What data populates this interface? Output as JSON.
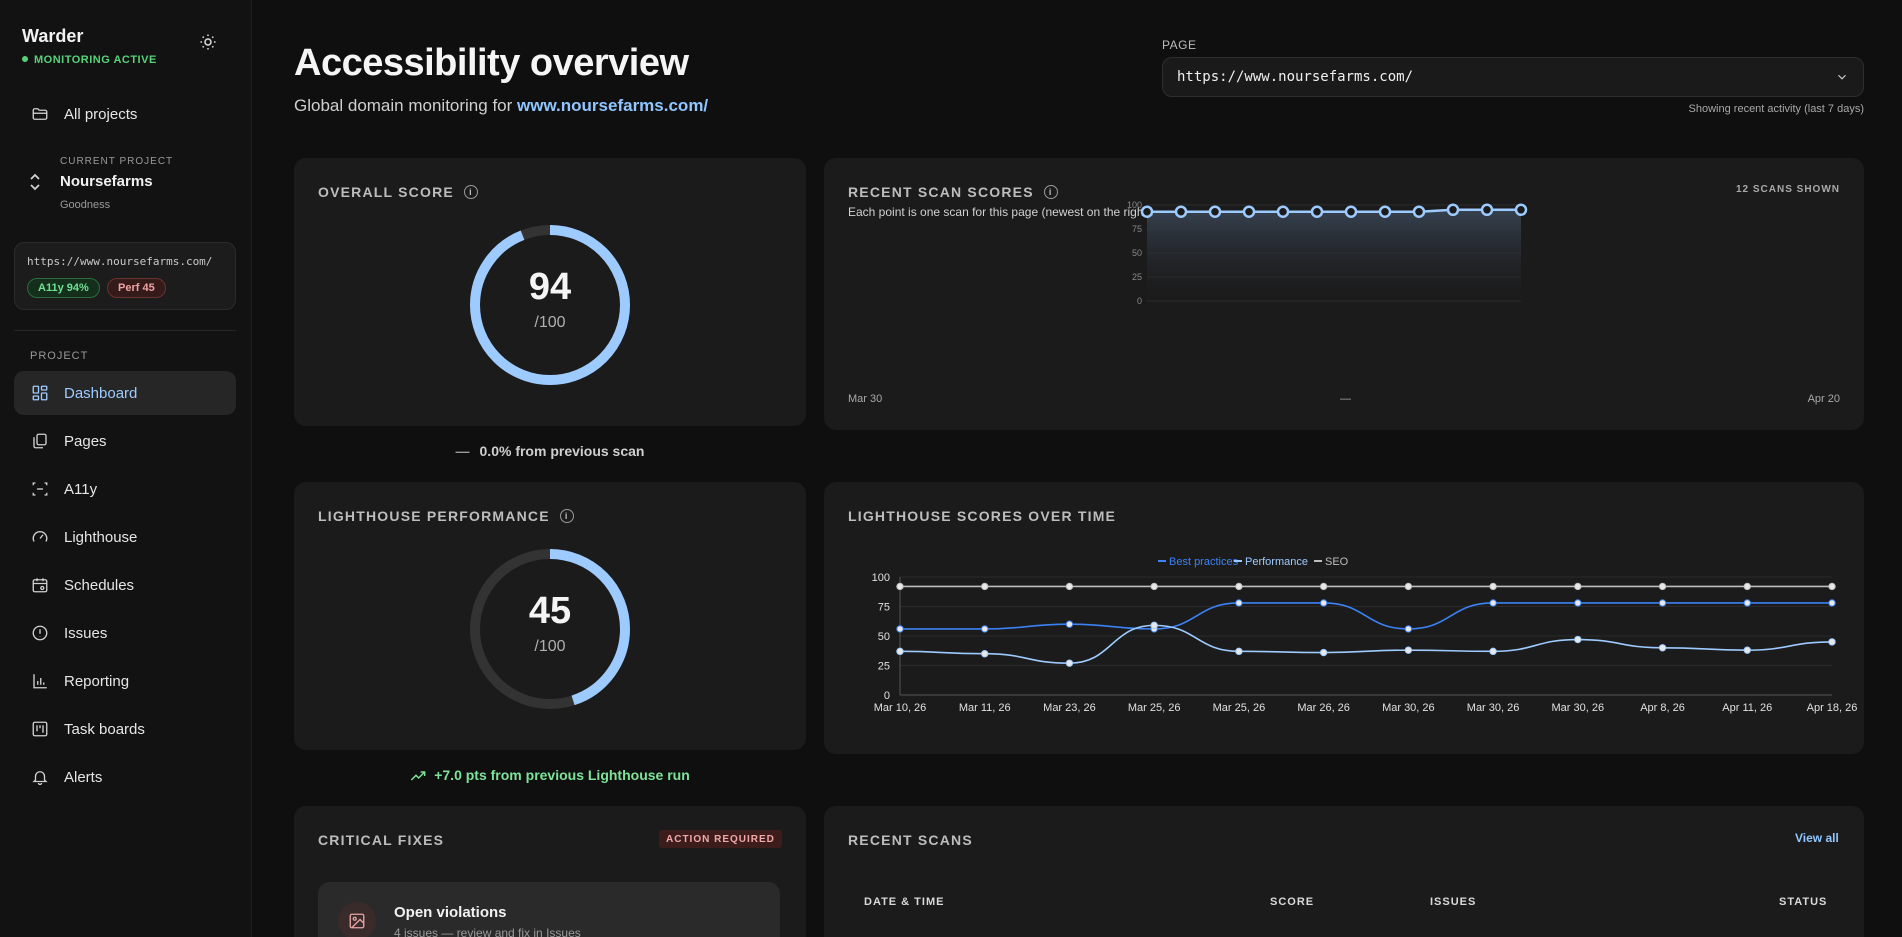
{
  "sidebar": {
    "brand": "Warder",
    "status": "MONITORING ACTIVE",
    "all_projects": "All projects",
    "current_project_label": "CURRENT PROJECT",
    "current_project_name": "Noursefarms",
    "current_project_sub": "Goodness",
    "project_card": {
      "url": "https://www.noursefarms.com/",
      "a11y_badge": "A11y 94%",
      "perf_badge": "Perf 45"
    },
    "section_label": "PROJECT",
    "items": [
      {
        "label": "Dashboard",
        "icon": "dashboard-icon",
        "active": true
      },
      {
        "label": "Pages",
        "icon": "pages-icon"
      },
      {
        "label": "A11y",
        "icon": "a11y-icon"
      },
      {
        "label": "Lighthouse",
        "icon": "gauge-icon"
      },
      {
        "label": "Schedules",
        "icon": "calendar-icon"
      },
      {
        "label": "Issues",
        "icon": "alert-circle-icon"
      },
      {
        "label": "Reporting",
        "icon": "bar-chart-icon"
      },
      {
        "label": "Task boards",
        "icon": "kanban-icon"
      },
      {
        "label": "Alerts",
        "icon": "bell-icon"
      }
    ]
  },
  "header": {
    "title": "Accessibility overview",
    "subtitle_prefix": "Global domain monitoring for ",
    "subtitle_link": "www.noursefarms.com/",
    "page_label": "PAGE",
    "page_value": "https://www.noursefarms.com/",
    "recent_note": "Showing recent activity (last 7 days)"
  },
  "overall": {
    "title": "OVERALL SCORE",
    "score": 94,
    "score_text": "94",
    "denominator": "/100",
    "delta": "0.0% from previous scan",
    "delta_icon": "—"
  },
  "lighthouse_perf": {
    "title": "LIGHTHOUSE PERFORMANCE",
    "score": 45,
    "score_text": "45",
    "denominator": "/100",
    "delta": "+7.0 pts from previous Lighthouse run"
  },
  "recent_scan_scores": {
    "title": "RECENT SCAN SCORES",
    "count_label": "12 SCANS SHOWN",
    "description": "Each point is one scan for this page (newest on the right).",
    "x_start": "Mar 30",
    "x_mid": "—",
    "x_end": "Apr 20"
  },
  "lighthouse_over_time": {
    "title": "LIGHTHOUSE SCORES OVER TIME"
  },
  "critical_fixes": {
    "title": "CRITICAL FIXES",
    "badge": "ACTION REQUIRED",
    "item_title": "Open violations",
    "item_sub": "4 issues — review and fix in Issues"
  },
  "recent_scans": {
    "title": "RECENT SCANS",
    "view_all": "View all",
    "columns": [
      "DATE & TIME",
      "SCORE",
      "ISSUES",
      "STATUS"
    ]
  },
  "colors": {
    "accent": "#9ecbff",
    "best_practices": "#3b82f6",
    "performance": "#9ecbff",
    "seo": "#bdbdbd",
    "success": "#57d17a"
  },
  "chart_data": [
    {
      "type": "area",
      "title": "RECENT SCAN SCORES",
      "x": [
        "Mar 30",
        "",
        "",
        "",
        "",
        "",
        "",
        "",
        "",
        "",
        "",
        "Apr 20"
      ],
      "values": [
        93,
        93,
        93,
        93,
        93,
        93,
        93,
        93,
        93,
        95,
        95,
        95
      ],
      "ylim": [
        0,
        100
      ],
      "yticks": [
        0,
        25,
        50,
        75,
        100
      ],
      "grid": true
    },
    {
      "type": "line",
      "title": "LIGHTHOUSE SCORES OVER TIME",
      "categories": [
        "Mar 10, 26",
        "Mar 11, 26",
        "Mar 23, 26",
        "Mar 25, 26",
        "Mar 25, 26",
        "Mar 26, 26",
        "Mar 30, 26",
        "Mar 30, 26",
        "Mar 30, 26",
        "Apr 8, 26",
        "Apr 11, 26",
        "Apr 18, 26"
      ],
      "series": [
        {
          "name": "Best practices",
          "values": [
            56,
            56,
            60,
            56,
            78,
            78,
            56,
            78,
            78,
            78,
            78,
            78
          ]
        },
        {
          "name": "Performance",
          "values": [
            37,
            35,
            27,
            59,
            37,
            36,
            38,
            37,
            47,
            40,
            38,
            45
          ]
        },
        {
          "name": "SEO",
          "values": [
            92,
            92,
            92,
            92,
            92,
            92,
            92,
            92,
            92,
            92,
            92,
            92
          ]
        }
      ],
      "ylim": [
        0,
        100
      ],
      "yticks": [
        0,
        25,
        50,
        75,
        100
      ],
      "legend": "top-center",
      "grid": true
    }
  ]
}
